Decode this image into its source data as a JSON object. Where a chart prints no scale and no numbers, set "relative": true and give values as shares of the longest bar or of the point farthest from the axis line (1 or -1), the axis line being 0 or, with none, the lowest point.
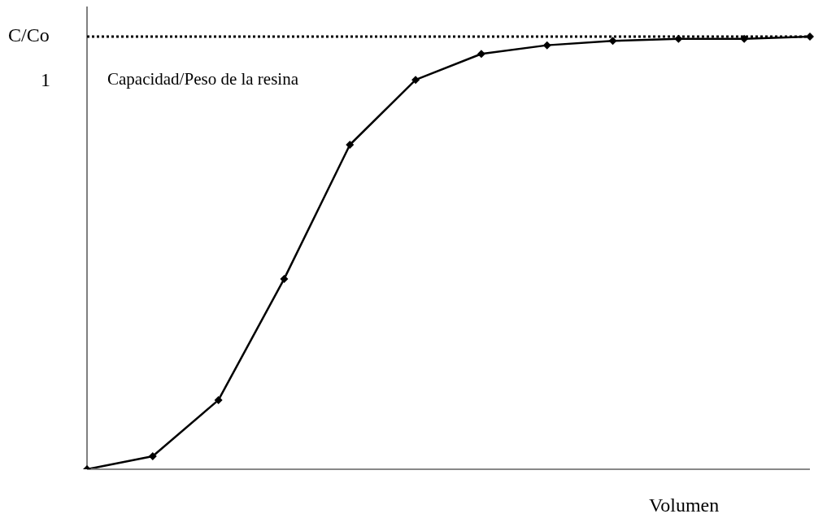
{
  "chart_data": {
    "type": "line",
    "ylabel": "C/Co",
    "xlabel": "Volumen",
    "relative": true,
    "categories": [
      null,
      null,
      null,
      null,
      null,
      null,
      null,
      null,
      null,
      null,
      null,
      null
    ],
    "series": [
      {
        "color": "#000000",
        "values": [
          0,
          0.03,
          0.16,
          0.44,
          0.75,
          0.9,
          0.96,
          0.98,
          0.99,
          0.995,
          0.995,
          1
        ]
      }
    ],
    "ref_lines": [
      {
        "axis": "y",
        "value": 1,
        "label": "1",
        "line_style": "dotted",
        "color": "#000000"
      }
    ],
    "annotations": [
      "Capacidad/Peso de la resina"
    ],
    "marker": "diamond",
    "line_style": "solid",
    "grid": false,
    "legend": false
  }
}
